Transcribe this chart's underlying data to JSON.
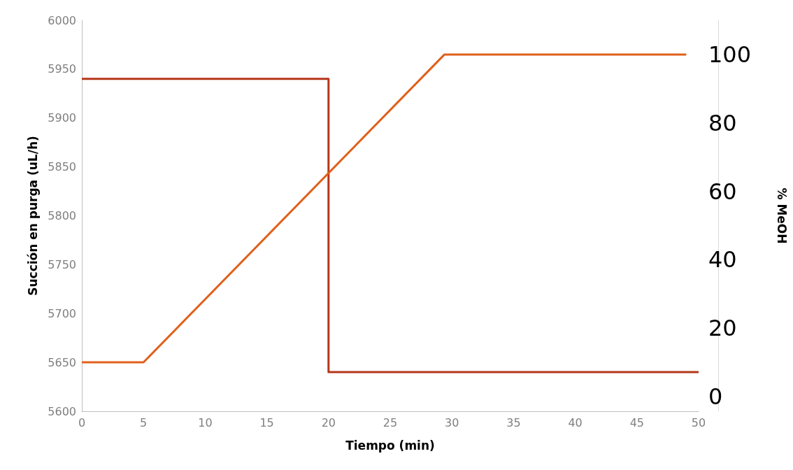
{
  "chart_data": {
    "type": "line",
    "xlabel": "Tiempo (min)",
    "ylabel": "Succión en purga (uL/h)",
    "y2label": "% MeOH",
    "xlim": [
      0,
      50
    ],
    "xticks": [
      0,
      5,
      10,
      15,
      20,
      25,
      30,
      35,
      40,
      45,
      50
    ],
    "ylim": [
      5600,
      6000
    ],
    "yticks": [
      5600,
      5650,
      5700,
      5750,
      5800,
      5850,
      5900,
      5950,
      6000
    ],
    "y2lim": [
      -4.3,
      110
    ],
    "y2ticks": [
      0,
      20,
      40,
      60,
      80,
      100
    ],
    "grid": false,
    "marker": "none",
    "line_style": "solid",
    "series": [
      {
        "color": "#b5361a",
        "x": [
          0,
          20,
          20,
          50
        ],
        "values": [
          5940,
          5940,
          5640,
          5640
        ]
      },
      {
        "color": "#e0601a",
        "axis": "y2",
        "x": [
          0,
          5,
          29.4,
          49
        ],
        "values": [
          10,
          10,
          100,
          100
        ]
      }
    ]
  }
}
